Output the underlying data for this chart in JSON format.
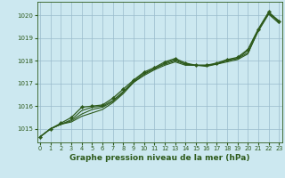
{
  "title": "Graphe pression niveau de la mer (hPa)",
  "bg_color": "#cce8f0",
  "line_color": "#2d5a1b",
  "grid_color": "#99bbcc",
  "ylim": [
    1014.4,
    1020.6
  ],
  "xlim": [
    -0.3,
    23.3
  ],
  "yticks": [
    1015,
    1016,
    1017,
    1018,
    1019,
    1020
  ],
  "xticks": [
    0,
    1,
    2,
    3,
    4,
    5,
    6,
    7,
    8,
    9,
    10,
    11,
    12,
    13,
    14,
    15,
    16,
    17,
    18,
    19,
    20,
    21,
    22,
    23
  ],
  "series": [
    [
      1014.65,
      1015.0,
      1015.2,
      1015.3,
      1015.55,
      1015.7,
      1015.85,
      1016.15,
      1016.55,
      1017.05,
      1017.35,
      1017.6,
      1017.8,
      1017.95,
      1017.8,
      1017.8,
      1017.75,
      1017.85,
      1017.95,
      1018.05,
      1018.3,
      1019.35,
      1020.1,
      1019.75
    ],
    [
      1014.65,
      1015.0,
      1015.2,
      1015.35,
      1015.65,
      1015.85,
      1015.95,
      1016.2,
      1016.6,
      1017.05,
      1017.4,
      1017.65,
      1017.85,
      1018.0,
      1017.85,
      1017.8,
      1017.8,
      1017.85,
      1018.0,
      1018.1,
      1018.35,
      1019.3,
      1020.05,
      1019.65
    ],
    [
      1014.65,
      1015.0,
      1015.2,
      1015.4,
      1015.8,
      1015.95,
      1016.0,
      1016.25,
      1016.65,
      1017.1,
      1017.45,
      1017.65,
      1017.9,
      1018.05,
      1017.85,
      1017.8,
      1017.8,
      1017.85,
      1018.05,
      1018.1,
      1018.45,
      1019.35,
      1020.1,
      1019.7
    ],
    [
      1014.65,
      1015.0,
      1015.25,
      1015.5,
      1015.95,
      1016.0,
      1016.05,
      1016.35,
      1016.75,
      1017.15,
      1017.5,
      1017.7,
      1017.95,
      1018.1,
      1017.9,
      1017.8,
      1017.8,
      1017.9,
      1018.05,
      1018.15,
      1018.5,
      1019.4,
      1020.15,
      1019.75
    ]
  ]
}
